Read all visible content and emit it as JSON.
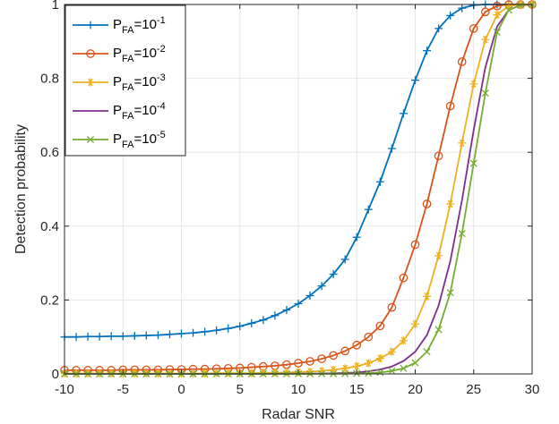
{
  "chart_data": {
    "type": "line",
    "title": "",
    "xlabel": "Radar SNR",
    "ylabel": "Detection probability",
    "xlim": [
      -10,
      30
    ],
    "ylim": [
      0,
      1
    ],
    "xticks": [
      -10,
      -5,
      0,
      5,
      10,
      15,
      20,
      25,
      30
    ],
    "yticks": [
      0,
      0.2,
      0.4,
      0.6,
      0.8,
      1
    ],
    "xtick_labels": [
      "-10",
      "-5",
      "0",
      "5",
      "10",
      "15",
      "20",
      "25",
      "30"
    ],
    "ytick_labels": [
      "0",
      "0.2",
      "0.4",
      "0.6",
      "0.8",
      "1"
    ],
    "grid": true,
    "legend_position": "top-left",
    "series": [
      {
        "name_base": "P",
        "name_sub": "FA",
        "name_mid": "=10",
        "name_sup": "-1",
        "color": "#0072BD",
        "marker": "plus",
        "x_start": -10,
        "x_step": 1,
        "values": [
          0.1,
          0.1,
          0.101,
          0.101,
          0.102,
          0.102,
          0.103,
          0.104,
          0.105,
          0.107,
          0.109,
          0.111,
          0.114,
          0.118,
          0.123,
          0.129,
          0.137,
          0.146,
          0.158,
          0.173,
          0.19,
          0.212,
          0.238,
          0.27,
          0.31,
          0.37,
          0.445,
          0.52,
          0.61,
          0.705,
          0.795,
          0.875,
          0.935,
          0.97,
          0.99,
          0.998,
          1.0,
          1.0,
          1.0,
          1.0,
          1.0
        ]
      },
      {
        "name_base": "P",
        "name_sub": "FA",
        "name_mid": "=10",
        "name_sup": "-2",
        "color": "#D95319",
        "marker": "circle",
        "x_start": -10,
        "x_step": 1,
        "values": [
          0.01,
          0.01,
          0.01,
          0.01,
          0.01,
          0.011,
          0.011,
          0.011,
          0.011,
          0.012,
          0.012,
          0.013,
          0.013,
          0.014,
          0.015,
          0.016,
          0.018,
          0.02,
          0.022,
          0.025,
          0.029,
          0.034,
          0.041,
          0.05,
          0.062,
          0.078,
          0.1,
          0.13,
          0.18,
          0.26,
          0.35,
          0.46,
          0.59,
          0.725,
          0.845,
          0.935,
          0.98,
          0.996,
          1.0,
          1.0,
          1.0
        ]
      },
      {
        "name_base": "P",
        "name_sub": "FA",
        "name_mid": "=10",
        "name_sup": "-3",
        "color": "#EDB120",
        "marker": "asterisk",
        "x_start": -10,
        "x_step": 1,
        "values": [
          0.001,
          0.001,
          0.001,
          0.001,
          0.001,
          0.001,
          0.001,
          0.001,
          0.001,
          0.001,
          0.001,
          0.001,
          0.001,
          0.002,
          0.002,
          0.002,
          0.002,
          0.003,
          0.003,
          0.004,
          0.005,
          0.006,
          0.008,
          0.011,
          0.015,
          0.021,
          0.029,
          0.042,
          0.06,
          0.09,
          0.135,
          0.21,
          0.32,
          0.46,
          0.625,
          0.785,
          0.905,
          0.972,
          0.996,
          1.0,
          1.0
        ]
      },
      {
        "name_base": "P",
        "name_sub": "FA",
        "name_mid": "=10",
        "name_sup": "-4",
        "color": "#7E2F8E",
        "marker": "none",
        "x_start": -10,
        "x_step": 1,
        "values": [
          0.0001,
          0.0001,
          0.0001,
          0.0001,
          0.0001,
          0.0001,
          0.0001,
          0.0001,
          0.0001,
          0.0001,
          0.0001,
          0.0001,
          0.0001,
          0.0002,
          0.0002,
          0.0002,
          0.0003,
          0.0003,
          0.0004,
          0.0005,
          0.0007,
          0.0009,
          0.0013,
          0.0018,
          0.0026,
          0.004,
          0.007,
          0.012,
          0.02,
          0.035,
          0.06,
          0.105,
          0.185,
          0.305,
          0.47,
          0.66,
          0.83,
          0.94,
          0.985,
          0.998,
          1.0
        ]
      },
      {
        "name_base": "P",
        "name_sub": "FA",
        "name_mid": "=10",
        "name_sup": "-5",
        "color": "#77AC30",
        "marker": "x",
        "x_start": -10,
        "x_step": 1,
        "values": [
          1e-05,
          1e-05,
          1e-05,
          1e-05,
          1e-05,
          1e-05,
          1e-05,
          1e-05,
          1e-05,
          1e-05,
          1e-05,
          1e-05,
          1e-05,
          2e-05,
          2e-05,
          2e-05,
          3e-05,
          4e-05,
          5e-05,
          7e-05,
          0.0001,
          0.0002,
          0.0003,
          0.0005,
          0.0008,
          0.0013,
          0.002,
          0.004,
          0.008,
          0.015,
          0.03,
          0.06,
          0.12,
          0.22,
          0.38,
          0.57,
          0.76,
          0.925,
          0.985,
          0.998,
          1.0
        ]
      }
    ]
  }
}
